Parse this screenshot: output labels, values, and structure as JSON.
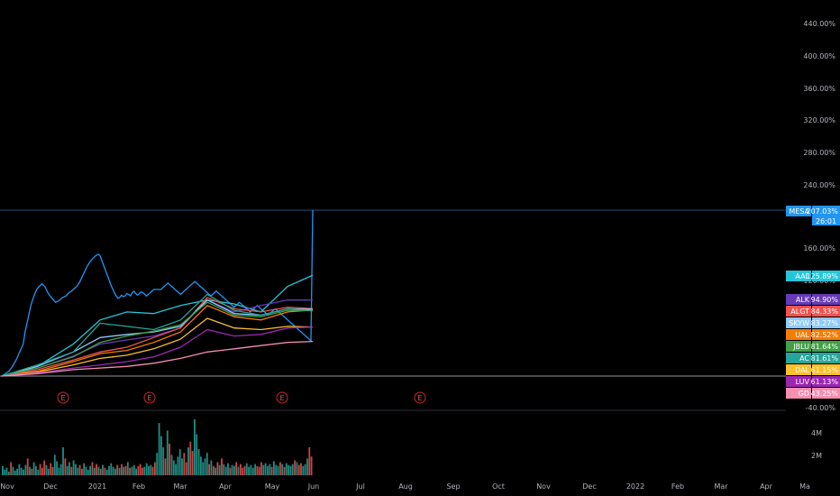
{
  "chart_data": {
    "type": "line",
    "y_unit": "percent change",
    "ylim": [
      -40,
      450
    ],
    "y_ticks": [
      "440.00%",
      "400.00%",
      "360.00%",
      "320.00%",
      "280.00%",
      "240.00%",
      "160.00%",
      "120.00%",
      "-40.00%"
    ],
    "x_ticks": [
      "Nov",
      "Dec",
      "2021",
      "Feb",
      "Mar",
      "Apr",
      "May",
      "Jun",
      "Jul",
      "Aug",
      "Sep",
      "Oct",
      "Nov",
      "Dec",
      "2022",
      "Feb",
      "Mar",
      "Apr",
      "Ma"
    ],
    "earnings_markers": [
      "E",
      "E",
      "E",
      "E"
    ],
    "volume_ticks": [
      "4M",
      "2M"
    ],
    "grid": false,
    "series": [
      {
        "name": "MESA",
        "label": "207.03%",
        "extra": "26:01",
        "color": "#2196f3",
        "final": 207.03,
        "x": [
          0,
          4,
          8,
          12,
          16,
          20,
          24,
          26,
          28,
          30,
          33,
          36,
          39,
          42,
          45,
          48,
          51,
          54,
          57,
          60,
          64,
          68,
          72,
          75,
          78,
          81,
          84,
          87,
          90,
          93,
          96,
          99,
          102,
          105,
          108,
          110,
          112,
          114,
          116,
          118,
          120,
          122,
          124,
          126,
          128,
          130,
          132,
          134,
          136,
          138,
          140,
          142,
          144,
          146,
          148,
          150,
          152,
          154,
          156,
          158,
          160,
          162,
          164,
          166,
          168,
          170,
          172,
          174,
          176,
          178,
          180,
          182,
          184,
          186,
          188,
          190,
          192,
          194,
          196,
          198,
          200,
          202,
          204,
          206,
          208,
          210,
          212,
          214,
          216,
          218,
          220,
          222,
          224,
          226,
          228,
          230,
          232,
          234,
          236,
          238,
          240,
          242,
          244,
          246,
          248,
          250,
          252,
          254,
          256,
          258,
          260,
          262,
          264,
          266,
          268,
          270,
          272,
          274,
          276,
          278,
          280,
          282,
          284,
          286,
          288,
          290,
          292,
          294,
          296,
          298,
          300,
          302,
          304,
          306,
          308,
          310,
          312,
          314,
          316,
          318,
          320,
          322,
          324,
          326,
          328,
          330,
          332,
          334,
          336,
          338,
          340,
          342,
          344,
          346,
          348
        ],
        "y": [
          0,
          3,
          6,
          12,
          20,
          30,
          40,
          55,
          65,
          75,
          90,
          100,
          108,
          112,
          115,
          112,
          105,
          100,
          96,
          92,
          94,
          98,
          100,
          104,
          106,
          109,
          112,
          117,
          124,
          131,
          138,
          143,
          147,
          150,
          152,
          150,
          144,
          138,
          132,
          126,
          120,
          114,
          109,
          104,
          100,
          97,
          98,
          101,
          99,
          100,
          103,
          102,
          100,
          104,
          106,
          103,
          101,
          103,
          105,
          104,
          102,
          100,
          102,
          104,
          106,
          108,
          108,
          108,
          108,
          108,
          110,
          112,
          114,
          116,
          114,
          112,
          110,
          108,
          106,
          104,
          102,
          104,
          106,
          108,
          110,
          112,
          114,
          116,
          118,
          116,
          114,
          112,
          110,
          108,
          106,
          104,
          102,
          100,
          102,
          104,
          106,
          104,
          102,
          100,
          98,
          96,
          94,
          92,
          90,
          88,
          86,
          88,
          90,
          92,
          90,
          88,
          86,
          84,
          82,
          80,
          82,
          84,
          86,
          88,
          86,
          84,
          82,
          80,
          78,
          76,
          78,
          80,
          82,
          84,
          82,
          80,
          78,
          76,
          74,
          72,
          70,
          68,
          66,
          64,
          62,
          60,
          58,
          56,
          54,
          52,
          50,
          48,
          46,
          44,
          207.03
        ]
      },
      {
        "name": "AAL",
        "label": "125.89%",
        "color": "#26c6da",
        "final": 125.89,
        "x": [],
        "y": []
      },
      {
        "name": "ALK",
        "label": "94.90%",
        "color": "#673ab7",
        "final": 94.9,
        "x": [],
        "y": []
      },
      {
        "name": "ALGT",
        "label": "84.33%",
        "color": "#ef5350",
        "final": 84.33,
        "x": [],
        "y": []
      },
      {
        "name": "SKYW",
        "label": "83.27%",
        "color": "#90caf9",
        "final": 83.27,
        "x": [],
        "y": []
      },
      {
        "name": "UAL",
        "label": "82.52%",
        "color": "#f57c00",
        "final": 82.52,
        "x": [],
        "y": []
      },
      {
        "name": "JBLU",
        "label": "81.64%",
        "color": "#43a047",
        "final": 81.64,
        "x": [],
        "y": []
      },
      {
        "name": "AC",
        "label": "81.61%",
        "color": "#26a69a",
        "final": 81.61,
        "x": [],
        "y": []
      },
      {
        "name": "DAL",
        "label": "61.15%",
        "color": "#fbc02d",
        "final": 61.15,
        "x": [],
        "y": []
      },
      {
        "name": "LUV",
        "label": "61.13%",
        "color": "#9c27b0",
        "final": 61.13,
        "x": [],
        "y": []
      },
      {
        "name": "GD",
        "label": "43.25%",
        "color": "#f48fb1",
        "final": 43.25,
        "x": [],
        "y": []
      }
    ],
    "volume": [
      10,
      6,
      8,
      4,
      14,
      9,
      5,
      7,
      12,
      8,
      6,
      11,
      18,
      9,
      7,
      14,
      10,
      6,
      12,
      8,
      16,
      11,
      7,
      13,
      9,
      22,
      15,
      8,
      12,
      30,
      18,
      10,
      14,
      9,
      16,
      12,
      8,
      11,
      7,
      13,
      9,
      6,
      10,
      14,
      8,
      12,
      9,
      7,
      11,
      8,
      6,
      10,
      13,
      9,
      7,
      11,
      8,
      12,
      9,
      10,
      14,
      8,
      9,
      11,
      7,
      10,
      12,
      8,
      9,
      13,
      10,
      11,
      9,
      14,
      24,
      56,
      42,
      30,
      18,
      48,
      34,
      22,
      16,
      12,
      20,
      28,
      18,
      24,
      14,
      30,
      36,
      26,
      60,
      44,
      28,
      20,
      14,
      18,
      24,
      12,
      16,
      10,
      8,
      14,
      11,
      18,
      12,
      9,
      13,
      8,
      11,
      10,
      14,
      9,
      12,
      8,
      10,
      13,
      9,
      11,
      8,
      12,
      10,
      9,
      14,
      11,
      13,
      10,
      12,
      9,
      15,
      11,
      10,
      14,
      12,
      9,
      13,
      11,
      10,
      12,
      16,
      14,
      11,
      13,
      10,
      12,
      18,
      30,
      20
    ]
  }
}
